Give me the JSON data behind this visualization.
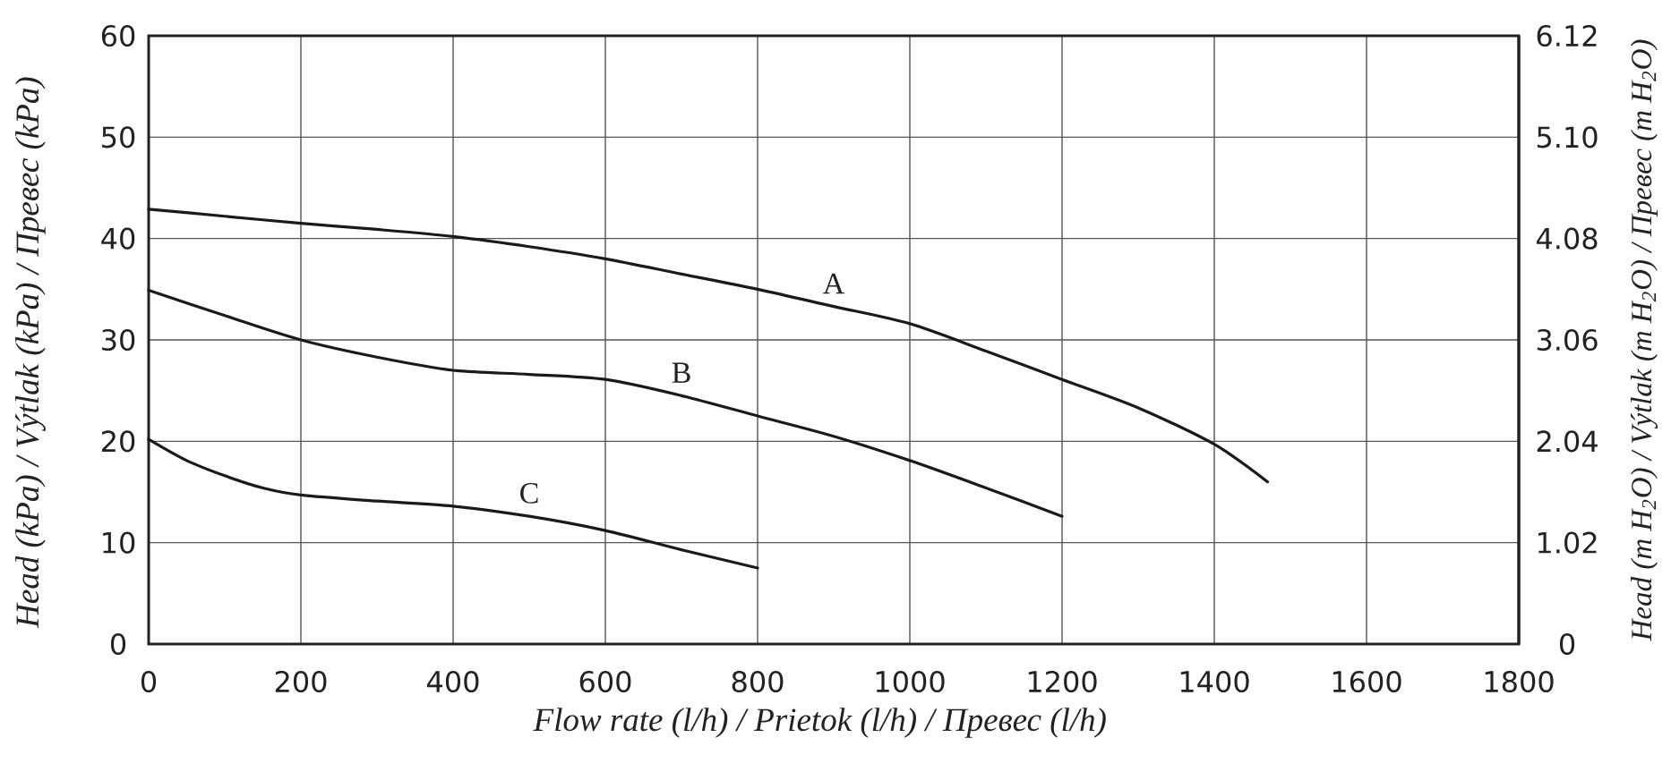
{
  "chart_data": {
    "type": "line",
    "xlabel": "Flow rate (l/h) / Prietok (l/h) / Превес (l/h)",
    "ylabel": "Head (kPa) / Výtlak (kPa) / Превес (kPa)",
    "y2label": "Head (m H$_{2}$O) / Výtlak (m H$_{2}$O) / Превес (m H$_{2}$O)",
    "xlim": [
      0,
      1800
    ],
    "xticks": [
      0,
      200,
      400,
      600,
      800,
      1000,
      1200,
      1400,
      1600,
      1800
    ],
    "ylim": [
      0,
      60
    ],
    "yticks": [
      0,
      10,
      20,
      30,
      40,
      50,
      60
    ],
    "y2lim": [
      0,
      6.12
    ],
    "y2ticks": [
      0,
      1.02,
      2.04,
      3.06,
      4.08,
      {
        "value": 5.1,
        "label": "5.10"
      },
      6.12
    ],
    "grid": true,
    "series": [
      {
        "name": "A",
        "color": "#1a1a1a",
        "x": [
          0,
          100,
          200,
          300,
          400,
          500,
          600,
          700,
          800,
          900,
          1000,
          1100,
          1200,
          1300,
          1400,
          1470
        ],
        "values": [
          42.9,
          42.2,
          41.5,
          40.9,
          40.2,
          39.2,
          38,
          36.5,
          35,
          33.3,
          31.6,
          28.9,
          26.1,
          23.3,
          19.7,
          16
        ]
      },
      {
        "name": "B",
        "color": "#1a1a1a",
        "x": [
          0,
          100,
          200,
          300,
          400,
          500,
          600,
          700,
          800,
          900,
          1000,
          1100,
          1200
        ],
        "values": [
          34.9,
          32.4,
          30,
          28.3,
          27,
          26.6,
          26.1,
          24.5,
          22.5,
          20.5,
          18.1,
          15.4,
          12.6
        ]
      },
      {
        "name": "C",
        "color": "#1a1a1a",
        "x": [
          0,
          50,
          100,
          150,
          200,
          300,
          400,
          500,
          600,
          700,
          800
        ],
        "values": [
          20.2,
          18.1,
          16.6,
          15.4,
          14.7,
          14.1,
          13.6,
          12.6,
          11.2,
          9.3,
          7.5
        ]
      }
    ]
  }
}
